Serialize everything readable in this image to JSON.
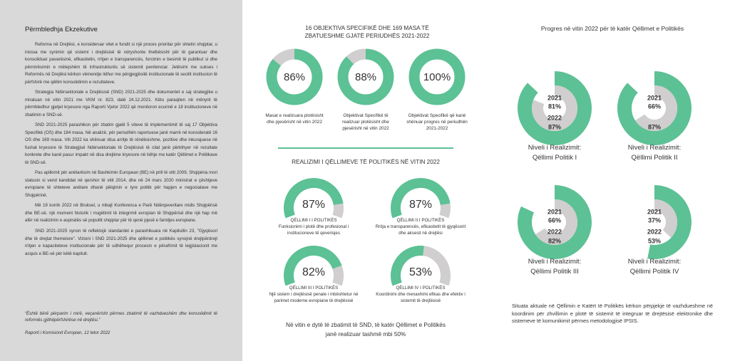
{
  "left": {
    "title": "Përmbledhja Ekzekutive",
    "paragraphs": [
      "Reforma në Drejtësi, e konsideruar vitet e fundit si një proces prioritar për shtetin shqiptar, u iniciua me synimin që sistemi i drejtësisë të ndryshonte thelbësisht për të garantuar dhe konsoliduar pavarësinë, efikasitetin, rritjen e transparencës, forcimin e besimit të publikut si dhe përmirësimin e mëtejshëm të infrastrukturës së sistemit penitenciar. Jetësimi me sukses i Reformës në Drejtësi kërkon vëmendje lidhur me përgjegjësitë institucionale të secilit institucion të përfshirë me qëllim konsolidimin e rezultateve.",
      "Strategjia Ndërsektoriale e Drejtësisë (SND) 2021-2025 dhe dokumentet e saj strategjike u miratuan në vitin 2021 me VKM nr. 823, datë 24.12.2021. Këtu paraqiten në mënyrë të përmbledhur gjetjet kryesore nga Raporti Vjetor 2022 që monitoron ecurinë e 18 institucioneve në zbatimin e SND-së.",
      "SND 2021-2025 parashikon për zbatim gjatë 5 viteve të implementimit të saj 17 Objektiva Specifikë (OS) dhe 184 masa. Në analizë, për periudhën raportuese janë marrë në konsideratë 16 OS dhe 169 masa. Viti 2022 ka shënuar disa arritje të rëndësishme, pozitive dhe inkurajuese në fushat kryesore të Strategjisë Ndërsektoriale të Drejtësisë të cilat janë përkthyer në rezultate konkrete dhe kanë pasur impakt në disa drejtime kryesore në lidhje me katër Qëllimet e Politikave të SND-së.",
      "Pas aplikimit për anëtarësim në Bashkimin European (BE) në prill të vitit 2009, Shqipëria mori statusin si vend kandidat në qershor të vitit 2014, dhe në 24 mars 2020 ministrat e çështjeve evropiane të shteteve anëtare dhanë pëlqimin e tyre politik për hapjen e negociatave me Shqipërinë.",
      "Më 19 korrik 2022 në Bruksel, u mbajt Konferenca e Parë Ndërqeveritare midis Shqipërisë dhe BE-së, një moment historik i rrugëtimit të integrimit evropian të Shqipërisë dhe një hap më afër në realizimin e aspiratës së popullit shqiptar për të qenë pjesë e familjes evropiane.",
      "SND 2021-2025 synon të reflektojë standardet e parashikuara në Kapitullin 23, \"Gjyqësori dhe të drejtat themelore\". Vizioni i SND 2021-2025 dhe qëllimet e politikës synojnë drejtpërdrejt rritjen e kapaciteteve institucionale për të udhëhequr procesin e përafrimit të legjislacionit me acquis e BE-së për këtë kapitull."
    ],
    "quote": "“Është bërë përparim i mirë, veçanërisht përmes zbatimit të vazhdueshëm dhe konsolidimit të reformës gjithëpërfshirëse në drejtësi.”",
    "source": "Raporti i Komisionit Evropian, 12 tetor 2022"
  },
  "objectives": {
    "title": "16 OBJEKTIVA SPECIFIKË DHE 169 MASA TË ZBATUESHME GJATË PERIUDHËS 2021-2022",
    "items": [
      {
        "value": 86,
        "label": "86%",
        "caption": "Masat e realizuara plotësisht dhe pjesërisht në vitin 2022"
      },
      {
        "value": 88,
        "label": "88%",
        "caption": "Objektivat Specifikë të realizuar plotësisht dhe pjesërisht në vitin 2022"
      },
      {
        "value": 100,
        "label": "100%",
        "caption": "Objektivat Specifikë që kanë shënuar progres në periudhën 2021-2022"
      }
    ]
  },
  "goals": {
    "title": "REALIZIMI I QËLLIMEVE TË POLITIKËS NË VITIN 2022",
    "items": [
      {
        "value": 87,
        "label": "87%",
        "name": "QËLLIMI I I POLITIKËS",
        "desc": "Funksionimi i plotë dhe profesional i institucioneve të qeverisjes"
      },
      {
        "value": 87,
        "label": "87%",
        "name": "QËLLIMI II I POLITIKËS",
        "desc": "Rritja e transparencës, efikasitetit të gjyqësorit dhe aksesit në drejtësi"
      },
      {
        "value": 82,
        "label": "82%",
        "name": "QËLLIMI III I POLITIKËS",
        "desc": "Një sistem i drejtësisë penale i mbështetur në parimet moderne evropiane të drejtësisë"
      },
      {
        "value": 53,
        "label": "53%",
        "name": "QËLLIMI IV I POLITIKËS",
        "desc": "Koordinimi dhe menaxhimi efikas dhe efektiv i sistemit të drejtësisë"
      }
    ],
    "footer": "Në vitin e dytë të zbatimit të SND, të katër Qëllimet e Politikës janë realizuar tashmë mbi 50%"
  },
  "progress": {
    "title": "Progres në vitin 2022 për të katër Qëllimet e Politikës",
    "items": [
      {
        "line1": "Niveli i Realizimit:",
        "line2": "Qëllimi Politik I",
        "rings": [
          {
            "year": "2021",
            "value": 81,
            "label": "81%"
          },
          {
            "year": "2022",
            "value": 87,
            "label": "87%"
          }
        ]
      },
      {
        "line1": "Niveli i Realizimit:",
        "line2": "Qëllimi Politik II",
        "rings": [
          {
            "year": "2021",
            "value": 66,
            "label": "66%"
          },
          {
            "value": 87,
            "label": "87%"
          }
        ]
      },
      {
        "line1": "Niveli i Realizimit:",
        "line2": "Qëllimi Politik III",
        "rings": [
          {
            "year": "2021",
            "value": 66,
            "label": "66%"
          },
          {
            "year": "2022",
            "value": 82,
            "label": "82%"
          }
        ]
      },
      {
        "line1": "Niveli i Realizimit:",
        "line2": "Qëllimi Politik IV",
        "rings": [
          {
            "year": "2021",
            "value": 37,
            "label": "37%"
          },
          {
            "year": "2022",
            "value": 53,
            "label": "53%"
          }
        ]
      }
    ],
    "note": "Situata aktuale në Qëllimin e Katërt të Politikës kërkon përpjekje të vazhdueshme në koordinim për zhvillimin e plotë të sistemit të integruar të drejtësisë elektronike dhe sistemeve të komunikimit përmes metodologjisë IPSIS."
  }
}
